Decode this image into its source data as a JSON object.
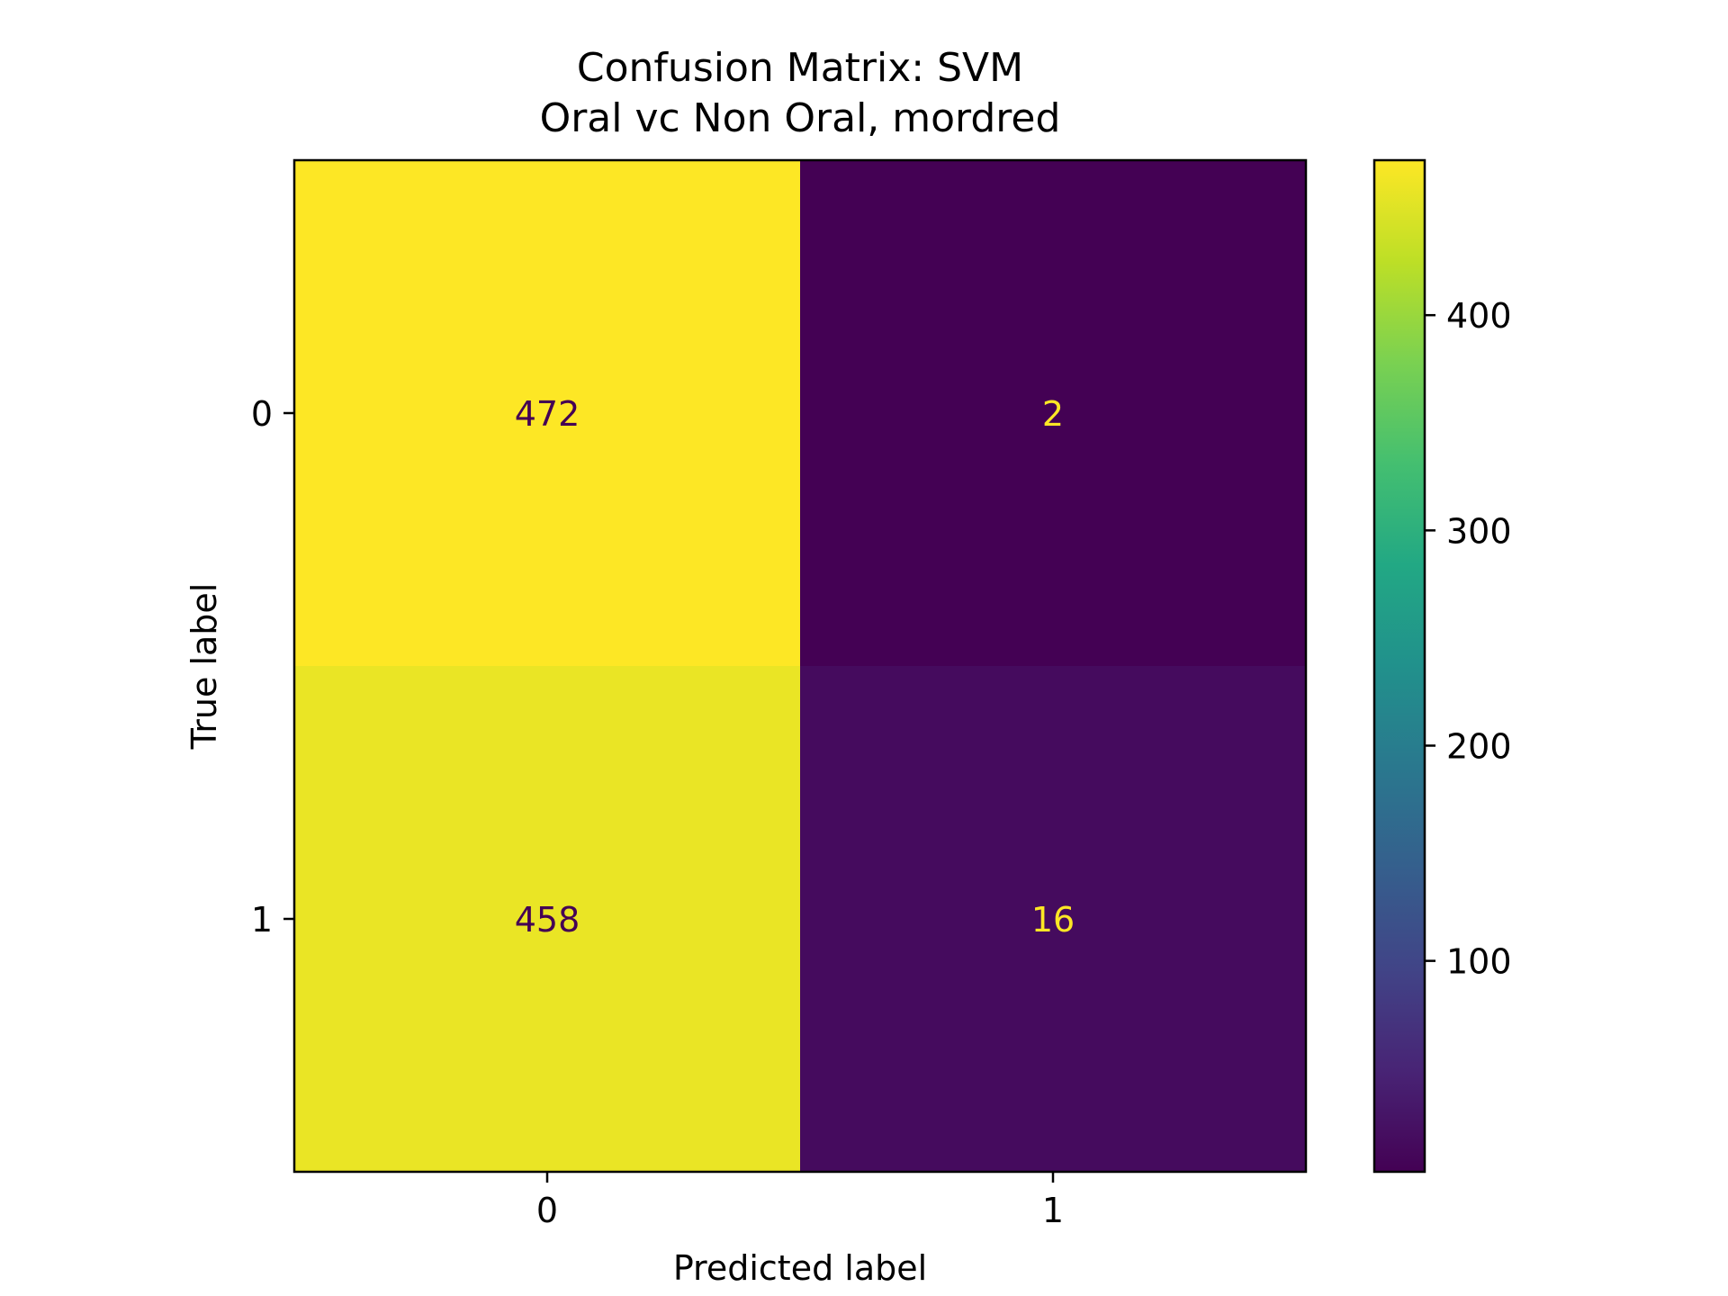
{
  "chart_data": {
    "type": "heatmap",
    "title_line1": "Confusion Matrix: SVM",
    "title_line2": "Oral vc Non Oral, mordred",
    "xlabel": "Predicted label",
    "ylabel": "True label",
    "x_categories": [
      "0",
      "1"
    ],
    "y_categories": [
      "0",
      "1"
    ],
    "matrix": [
      [
        472,
        2
      ],
      [
        458,
        16
      ]
    ],
    "colormap": "viridis",
    "colorbar": {
      "range": [
        2,
        472
      ],
      "ticks": [
        100,
        200,
        300,
        400
      ],
      "tick_labels": [
        "100",
        "200",
        "300",
        "400"
      ]
    },
    "grid": false
  }
}
